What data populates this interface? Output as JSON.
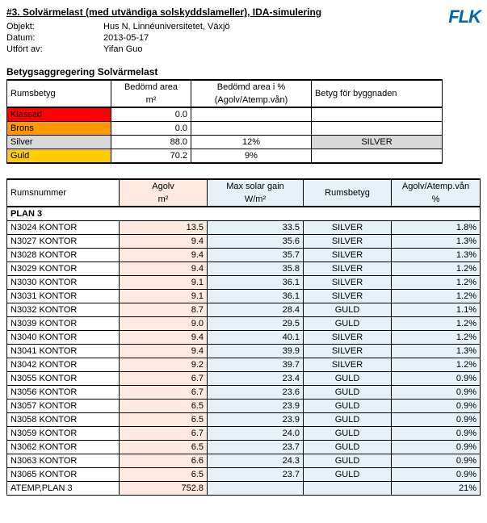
{
  "header": {
    "title": "#3. Solvärmelast (med utvändiga solskyddslameller), IDA-simulering",
    "logo": "FLK",
    "meta": {
      "objekt_k": "Objekt:",
      "objekt_v": "Hus N, Linnéuniversitetet, Växjö",
      "datum_k": "Datum:",
      "datum_v": "2013-05-17",
      "utfort_k": "Utfört av:",
      "utfort_v": "Yifan Guo"
    }
  },
  "agg": {
    "title": "Betygsaggregering Solvärmelast",
    "headers": {
      "rumsbetyg": "Rumsbetyg",
      "area_top": "Bedömd area",
      "area_bot": "m²",
      "pct_top": "Bedömd area i %",
      "pct_bot": "(Agolv/Atemp.vån)",
      "betyg": "Betyg för byggnaden"
    },
    "rows": [
      {
        "label": "Klassad",
        "area": "0.0",
        "pct": "",
        "betyg": "",
        "cls": "row-klassad"
      },
      {
        "label": "Brons",
        "area": "0.0",
        "pct": "",
        "betyg": "",
        "cls": "row-brons"
      },
      {
        "label": "Silver",
        "area": "88.0",
        "pct": "12%",
        "betyg": "SILVER",
        "cls": "row-silver"
      },
      {
        "label": "Guld",
        "area": "70.2",
        "pct": "9%",
        "betyg": "",
        "cls": "row-guld"
      }
    ]
  },
  "rooms": {
    "headers": {
      "rum": "Rumsnummer",
      "agolv_top": "Agolv",
      "agolv_bot": "m²",
      "max_top": "Max solar gain",
      "max_bot": "W/m²",
      "betyg": "Rumsbetyg",
      "ratio_top": "Agolv/Atemp.vån",
      "ratio_bot": "%"
    },
    "plan_label": "PLAN 3",
    "data": [
      {
        "name": "N3024 KONTOR",
        "a": "13.5",
        "m": "33.5",
        "g": "SILVER",
        "p": "1.8%"
      },
      {
        "name": "N3027 KONTOR",
        "a": "9.4",
        "m": "35.6",
        "g": "SILVER",
        "p": "1.3%"
      },
      {
        "name": "N3028 KONTOR",
        "a": "9.4",
        "m": "35.7",
        "g": "SILVER",
        "p": "1.3%"
      },
      {
        "name": "N3029 KONTOR",
        "a": "9.4",
        "m": "35.8",
        "g": "SILVER",
        "p": "1.2%"
      },
      {
        "name": "N3030 KONTOR",
        "a": "9.1",
        "m": "36.1",
        "g": "SILVER",
        "p": "1.2%"
      },
      {
        "name": "N3031 KONTOR",
        "a": "9.1",
        "m": "36.1",
        "g": "SILVER",
        "p": "1.2%"
      },
      {
        "name": "N3032 KONTOR",
        "a": "8.7",
        "m": "28.4",
        "g": "GULD",
        "p": "1.1%"
      },
      {
        "name": "N3039 KONTOR",
        "a": "9.0",
        "m": "29.5",
        "g": "GULD",
        "p": "1.2%"
      },
      {
        "name": "N3040 KONTOR",
        "a": "9.4",
        "m": "40.1",
        "g": "SILVER",
        "p": "1.2%"
      },
      {
        "name": "N3041 KONTOR",
        "a": "9.4",
        "m": "39.9",
        "g": "SILVER",
        "p": "1.3%"
      },
      {
        "name": "N3042 KONTOR",
        "a": "9.2",
        "m": "39.7",
        "g": "SILVER",
        "p": "1.2%"
      },
      {
        "name": "N3055 KONTOR",
        "a": "6.7",
        "m": "23.4",
        "g": "GULD",
        "p": "0.9%"
      },
      {
        "name": "N3056 KONTOR",
        "a": "6.7",
        "m": "23.6",
        "g": "GULD",
        "p": "0.9%"
      },
      {
        "name": "N3057 KONTOR",
        "a": "6.5",
        "m": "23.9",
        "g": "GULD",
        "p": "0.9%"
      },
      {
        "name": "N3058 KONTOR",
        "a": "6.5",
        "m": "23.9",
        "g": "GULD",
        "p": "0.9%"
      },
      {
        "name": "N3059 KONTOR",
        "a": "6.7",
        "m": "24.0",
        "g": "GULD",
        "p": "0.9%"
      },
      {
        "name": "N3062 KONTOR",
        "a": "6.5",
        "m": "23.7",
        "g": "GULD",
        "p": "0.9%"
      },
      {
        "name": "N3063 KONTOR",
        "a": "6.6",
        "m": "24.3",
        "g": "GULD",
        "p": "0.9%"
      },
      {
        "name": "N3065 KONTOR",
        "a": "6.5",
        "m": "23.7",
        "g": "GULD",
        "p": "0.9%"
      }
    ],
    "total": {
      "name": "ATEMP,PLAN 3",
      "a": "752.8",
      "m": "",
      "g": "",
      "p": "21%"
    }
  }
}
